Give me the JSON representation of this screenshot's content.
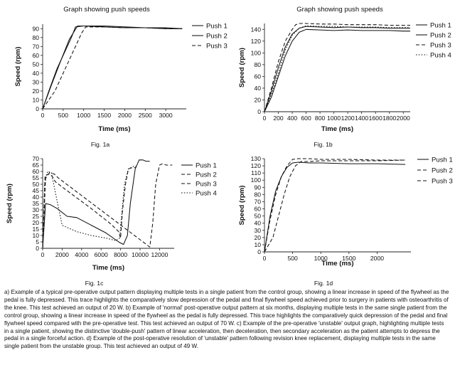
{
  "caption": "a) Example of a typical pre-operative output pattern displaying multiple tests in a single patient from the control group, showing a linear increase in speed of the flywheel as the pedal is fully depressed. This trace highlights the comparatively slow depression of the pedal and final flywheel speed achieved prior to surgery in patients with osteoarthritis of the knee. This test achieved an output of 20 W. b) Example of 'normal' post-operative output pattern at six months, displaying multiple tests in the same single patient from the control group, showing a linear increase in speed of the flywheel as the pedal is fully depressed. This trace highlights the comparatively quick depression of the pedal and final flywheel speed compared with the pre-operative test. This test achieved an output of 70 W. c) Example of the pre-operative 'unstable' output graph, highlighting multiple tests in a single patient, showing the distinctive 'double-push' pattern of linear acceleration, then deceleration, then secondary acceleration as the patient attempts to depress the pedal in a single forceful action. d) Example of the post-operative resolution of 'unstable' pattern following revision knee replacement, displaying multiple tests in the same single patient from the unstable group. This test achieved an output of 49 W.",
  "chart_data": [
    {
      "id": "a",
      "type": "line",
      "title": "Graph showing push speeds",
      "xlabel": "Time (ms)",
      "ylabel": "Speed (rpm)",
      "fig_label": "Fig. 1a",
      "xlim": [
        0,
        3500
      ],
      "ylim": [
        0,
        95
      ],
      "xticks": [
        0,
        500,
        1000,
        1500,
        2000,
        2500,
        3000
      ],
      "yticks": [
        0,
        10,
        20,
        30,
        40,
        50,
        60,
        70,
        80,
        90
      ],
      "series": [
        {
          "name": "Push 1",
          "style": "solid",
          "x": [
            0,
            200,
            450,
            650,
            850,
            1000,
            1500,
            2000,
            2500,
            3000,
            3400
          ],
          "y": [
            0,
            25,
            55,
            78,
            93,
            93,
            92,
            91,
            91,
            90,
            90
          ]
        },
        {
          "name": "Push 2",
          "style": "solid",
          "x": [
            0,
            150,
            350,
            550,
            700,
            800,
            1000,
            1500,
            2000,
            2500,
            3000,
            3400
          ],
          "y": [
            0,
            20,
            45,
            65,
            80,
            92,
            93,
            93,
            92,
            91,
            91,
            90
          ]
        },
        {
          "name": "Push 3",
          "style": "dash",
          "x": [
            0,
            300,
            600,
            800,
            950,
            1050,
            1500,
            2000,
            2500,
            3000,
            3400
          ],
          "y": [
            0,
            20,
            50,
            70,
            85,
            92,
            92,
            91,
            91,
            90,
            90
          ]
        }
      ]
    },
    {
      "id": "b",
      "type": "line",
      "title": "Graph showing push speeds",
      "xlabel": "Time (ms)",
      "ylabel": "Speed (rpm)",
      "fig_label": "Fig. 1b",
      "xlim": [
        0,
        2100
      ],
      "ylim": [
        0,
        150
      ],
      "xticks": [
        0,
        200,
        400,
        600,
        800,
        1000,
        1200,
        1400,
        1600,
        1800,
        2000
      ],
      "yticks": [
        0,
        20,
        40,
        60,
        80,
        100,
        120,
        140
      ],
      "series": [
        {
          "name": "Push 1",
          "style": "solid",
          "x": [
            0,
            100,
            200,
            300,
            400,
            500,
            600,
            800,
            1000,
            1200,
            1400,
            1600,
            1800,
            2000,
            2100
          ],
          "y": [
            0,
            25,
            60,
            95,
            120,
            135,
            140,
            139,
            138,
            139,
            138,
            138,
            138,
            137,
            137
          ]
        },
        {
          "name": "Push 2",
          "style": "solid",
          "x": [
            0,
            100,
            200,
            300,
            400,
            500,
            600,
            800,
            1000,
            1200,
            1400,
            1600,
            1800,
            2000,
            2100
          ],
          "y": [
            0,
            35,
            75,
            110,
            132,
            142,
            145,
            144,
            143,
            144,
            143,
            143,
            142,
            142,
            142
          ]
        },
        {
          "name": "Push 3",
          "style": "dash",
          "x": [
            0,
            100,
            200,
            300,
            400,
            450,
            500,
            600,
            800,
            1000,
            1200,
            1400,
            1600,
            1800,
            2000,
            2100
          ],
          "y": [
            0,
            40,
            85,
            120,
            140,
            148,
            150,
            150,
            149,
            149,
            148,
            148,
            148,
            147,
            147,
            147
          ]
        },
        {
          "name": "Push 4",
          "style": "dot",
          "x": [
            0,
            100,
            200,
            300,
            400,
            500,
            600,
            800,
            1000,
            1200,
            1400,
            1600,
            1800,
            2000,
            2100
          ],
          "y": [
            0,
            30,
            65,
            105,
            130,
            142,
            146,
            145,
            145,
            144,
            144,
            144,
            143,
            143,
            143
          ]
        }
      ]
    },
    {
      "id": "c",
      "type": "line",
      "title": "",
      "xlabel": "Time (ms)",
      "ylabel": "Speed (rpm)",
      "fig_label": "Fig. 1c",
      "xlim": [
        0,
        13500
      ],
      "ylim": [
        0,
        70
      ],
      "xticks": [
        0,
        2000,
        4000,
        6000,
        8000,
        10000,
        12000
      ],
      "yticks": [
        0,
        5,
        10,
        15,
        20,
        25,
        30,
        35,
        40,
        45,
        50,
        55,
        60,
        65,
        70
      ],
      "series": [
        {
          "name": "Push 1",
          "style": "solid",
          "x": [
            0,
            300,
            800,
            1500,
            2500,
            3500,
            5000,
            6500,
            7800,
            8300,
            8700,
            9000,
            9500,
            9900,
            10300,
            10600,
            11000
          ],
          "y": [
            0,
            35,
            34,
            31,
            25,
            24,
            18,
            12,
            5,
            3,
            10,
            35,
            62,
            69,
            69,
            68,
            68
          ]
        },
        {
          "name": "Push 2",
          "style": "dash",
          "x": [
            0,
            300,
            700,
            1200,
            1600,
            11000,
            11300,
            11600,
            12000,
            12300,
            12700,
            13300
          ],
          "y": [
            0,
            55,
            59,
            58,
            55,
            1,
            20,
            50,
            65,
            66,
            65,
            65
          ]
        },
        {
          "name": "Push 3",
          "style": "dash",
          "x": [
            0,
            250,
            700,
            1000,
            1300,
            2500,
            5000,
            7000,
            7800,
            8000,
            8200,
            8500,
            8800,
            9200,
            9600
          ],
          "y": [
            0,
            57,
            58,
            56,
            52,
            45,
            31,
            19,
            13,
            8,
            30,
            50,
            62,
            63,
            63
          ]
        },
        {
          "name": "Push 4",
          "style": "dot",
          "x": [
            0,
            200,
            500,
            900,
            1400,
            2000,
            3500,
            5000,
            6500,
            7500,
            7900,
            8100,
            8400,
            8800,
            9300,
            9600
          ],
          "y": [
            0,
            50,
            60,
            59,
            40,
            18,
            13,
            10,
            8,
            6,
            8,
            25,
            50,
            62,
            64,
            64
          ]
        }
      ]
    },
    {
      "id": "d",
      "type": "line",
      "title": "",
      "xlabel": "Time (ms)",
      "ylabel": "Speed (rpm)",
      "fig_label": "Fig. 1d",
      "xlim": [
        0,
        2600
      ],
      "ylim": [
        0,
        130
      ],
      "xticks": [
        0,
        500,
        1000,
        1500,
        2000
      ],
      "yticks": [
        0,
        10,
        20,
        30,
        40,
        50,
        60,
        70,
        80,
        90,
        100,
        110,
        120,
        130
      ],
      "series": [
        {
          "name": "Push 1",
          "style": "solid",
          "x": [
            0,
            100,
            200,
            300,
            400,
            500,
            600,
            800,
            1000,
            1500,
            2000,
            2500
          ],
          "y": [
            0,
            50,
            85,
            105,
            118,
            124,
            125,
            124,
            124,
            123,
            123,
            122
          ]
        },
        {
          "name": "Push 2",
          "style": "dash",
          "x": [
            0,
            150,
            250,
            350,
            450,
            550,
            650,
            800,
            1000,
            1500,
            2000,
            2500
          ],
          "y": [
            0,
            20,
            50,
            80,
            105,
            120,
            126,
            126,
            127,
            127,
            127,
            128
          ]
        },
        {
          "name": "Push 3",
          "style": "dash",
          "x": [
            0,
            100,
            200,
            300,
            400,
            500,
            600,
            800,
            1000,
            1500,
            2000,
            2500
          ],
          "y": [
            0,
            45,
            80,
            105,
            120,
            129,
            130,
            130,
            129,
            129,
            128,
            128
          ]
        }
      ]
    }
  ]
}
